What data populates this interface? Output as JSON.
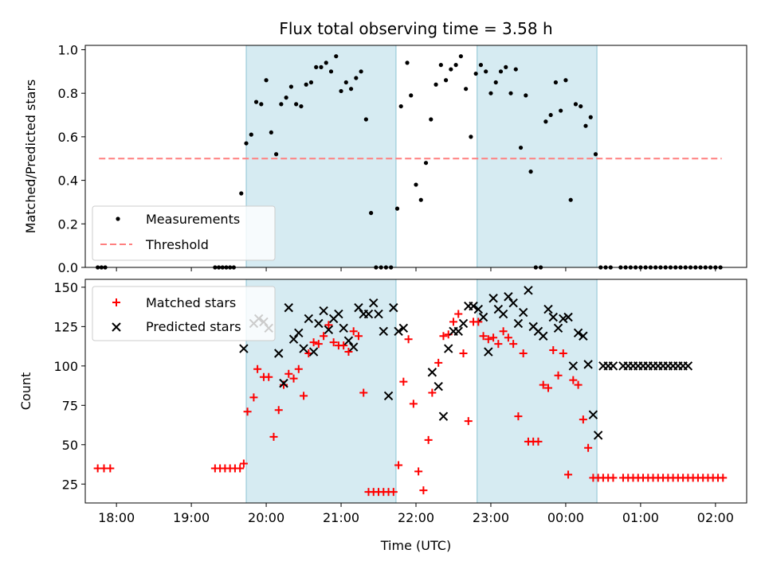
{
  "chart_data": [
    {
      "type": "scatter",
      "title": "Flux total observing time = 3.58 h",
      "ylabel": "Matched/Predicted stars",
      "xlabel": "",
      "xlim": [
        "17:35",
        "02:25"
      ],
      "ylim": [
        0,
        1.02
      ],
      "yticks": [
        "0.0",
        "0.2",
        "0.4",
        "0.6",
        "0.8",
        "1.0"
      ],
      "ytick_values": [
        0,
        0.2,
        0.4,
        0.6,
        0.8,
        1.0
      ],
      "shaded_spans": [
        [
          "19:44",
          "21:44"
        ],
        [
          "22:49",
          "00:25"
        ]
      ],
      "legend": {
        "placement": "lower-left",
        "entries": [
          "Measurements",
          "Threshold"
        ]
      },
      "threshold": {
        "name": "Threshold",
        "y": 0.5,
        "x_range": [
          "17:46",
          "02:05"
        ],
        "color": "#ff7f7f"
      },
      "series": [
        {
          "name": "Measurements",
          "color": "#000000",
          "x": [
            "17:45",
            "17:48",
            "17:51",
            "19:19",
            "19:22",
            "19:25",
            "19:28",
            "19:31",
            "19:34",
            "19:40",
            "19:44",
            "19:48",
            "19:52",
            "19:56",
            "20:00",
            "20:04",
            "20:08",
            "20:12",
            "20:16",
            "20:20",
            "20:24",
            "20:28",
            "20:32",
            "20:36",
            "20:40",
            "20:44",
            "20:48",
            "20:52",
            "20:56",
            "21:00",
            "21:04",
            "21:08",
            "21:12",
            "21:16",
            "21:20",
            "21:24",
            "21:28",
            "21:32",
            "21:36",
            "21:40",
            "21:45",
            "21:48",
            "21:53",
            "21:56",
            "22:00",
            "22:04",
            "22:08",
            "22:12",
            "22:16",
            "22:20",
            "22:24",
            "22:28",
            "22:32",
            "22:36",
            "22:40",
            "22:44",
            "22:48",
            "22:52",
            "22:56",
            "23:00",
            "23:04",
            "23:08",
            "23:12",
            "23:16",
            "23:20",
            "23:24",
            "23:28",
            "23:32",
            "23:36",
            "23:40",
            "23:44",
            "23:48",
            "23:52",
            "23:56",
            "00:00",
            "00:04",
            "00:08",
            "00:12",
            "00:16",
            "00:20",
            "00:24",
            "00:28",
            "00:32",
            "00:36",
            "00:44",
            "00:48",
            "00:52",
            "00:56",
            "01:00",
            "01:04",
            "01:08",
            "01:12",
            "01:16",
            "01:20",
            "01:24",
            "01:28",
            "01:32",
            "01:36",
            "01:40",
            "01:44",
            "01:48",
            "01:52",
            "01:56",
            "02:00",
            "02:04"
          ],
          "y": [
            0,
            0,
            0,
            0,
            0,
            0,
            0,
            0,
            0,
            0.34,
            0.57,
            0.61,
            0.76,
            0.75,
            0.86,
            0.62,
            0.52,
            0.75,
            0.78,
            0.83,
            0.75,
            0.74,
            0.84,
            0.85,
            0.92,
            0.92,
            0.94,
            0.9,
            0.97,
            0.81,
            0.85,
            0.82,
            0.87,
            0.9,
            0.68,
            0.25,
            0,
            0,
            0,
            0,
            0.27,
            0.74,
            0.94,
            0.79,
            0.38,
            0.31,
            0.48,
            0.68,
            0.84,
            0.93,
            0.86,
            0.91,
            0.93,
            0.97,
            0.82,
            0.6,
            0.89,
            0.93,
            0.9,
            0.8,
            0.85,
            0.9,
            0.92,
            0.8,
            0.91,
            0.55,
            0.79,
            0.44,
            0,
            0,
            0.67,
            0.7,
            0.85,
            0.72,
            0.86,
            0.31,
            0.75,
            0.74,
            0.65,
            0.69,
            0.52,
            0,
            0,
            0,
            0,
            0,
            0,
            0,
            0,
            0,
            0,
            0,
            0,
            0,
            0,
            0,
            0,
            0,
            0,
            0,
            0,
            0,
            0,
            0,
            0
          ]
        }
      ]
    },
    {
      "type": "scatter",
      "title": "",
      "xlabel": "Time (UTC)",
      "ylabel": "Count",
      "xlim": [
        "17:35",
        "02:25"
      ],
      "ylim": [
        13,
        155
      ],
      "xticks": [
        "18:00",
        "19:00",
        "20:00",
        "21:00",
        "22:00",
        "23:00",
        "00:00",
        "01:00",
        "02:00"
      ],
      "yticks": [
        "25",
        "50",
        "75",
        "100",
        "125",
        "150"
      ],
      "ytick_values": [
        25,
        50,
        75,
        100,
        125,
        150
      ],
      "shaded_spans": [
        [
          "19:44",
          "21:44"
        ],
        [
          "22:49",
          "00:25"
        ]
      ],
      "legend": {
        "placement": "upper-left",
        "entries": [
          "Matched stars",
          "Predicted stars"
        ]
      },
      "series": [
        {
          "name": "Matched stars",
          "marker": "+",
          "color": "#ff0000",
          "x": [
            "17:45",
            "17:50",
            "17:55",
            "19:19",
            "19:23",
            "19:27",
            "19:31",
            "19:35",
            "19:39",
            "19:42",
            "19:45",
            "19:50",
            "19:53",
            "19:58",
            "20:02",
            "20:06",
            "20:10",
            "20:14",
            "20:18",
            "20:22",
            "20:26",
            "20:30",
            "20:34",
            "20:38",
            "20:42",
            "20:46",
            "20:50",
            "20:54",
            "20:58",
            "21:02",
            "21:06",
            "21:10",
            "21:14",
            "21:18",
            "21:22",
            "21:26",
            "21:30",
            "21:34",
            "21:38",
            "21:42",
            "21:46",
            "21:50",
            "21:54",
            "21:58",
            "22:02",
            "22:06",
            "22:10",
            "22:13",
            "22:18",
            "22:22",
            "22:26",
            "22:30",
            "22:34",
            "22:38",
            "22:42",
            "22:46",
            "22:50",
            "22:54",
            "22:58",
            "23:02",
            "23:06",
            "23:10",
            "23:14",
            "23:18",
            "23:22",
            "23:26",
            "23:30",
            "23:34",
            "23:38",
            "23:42",
            "23:46",
            "23:50",
            "23:54",
            "23:58",
            "00:02",
            "00:06",
            "00:10",
            "00:14",
            "00:18",
            "00:22",
            "00:26",
            "00:30",
            "00:34",
            "00:38",
            "00:46",
            "00:50",
            "00:54",
            "00:58",
            "01:02",
            "01:06",
            "01:10",
            "01:14",
            "01:18",
            "01:22",
            "01:26",
            "01:30",
            "01:34",
            "01:38",
            "01:42",
            "01:46",
            "01:50",
            "01:54",
            "01:58",
            "02:02",
            "02:06"
          ],
          "y": [
            35,
            35,
            35,
            35,
            35,
            35,
            35,
            35,
            35,
            38,
            71,
            80,
            98,
            93,
            93,
            55,
            72,
            88,
            95,
            92,
            98,
            81,
            108,
            115,
            114,
            119,
            126,
            115,
            113,
            113,
            109,
            122,
            119,
            83,
            20,
            20,
            20,
            20,
            20,
            20,
            37,
            90,
            117,
            76,
            33,
            21,
            53,
            83,
            102,
            119,
            120,
            128,
            133,
            108,
            65,
            128,
            128,
            119,
            117,
            118,
            114,
            122,
            118,
            114,
            68,
            108,
            52,
            52,
            52,
            88,
            86,
            110,
            94,
            108,
            31,
            91,
            88,
            66,
            48,
            29,
            29,
            29,
            29,
            29,
            29,
            29,
            29,
            29,
            29,
            29,
            29,
            29,
            29,
            29,
            29,
            29,
            29,
            29,
            29,
            29,
            29,
            29,
            29,
            29,
            29
          ]
        },
        {
          "name": "Predicted stars",
          "marker": "x",
          "color": "#000000",
          "x": [
            "19:42",
            "19:50",
            "19:54",
            "19:58",
            "20:02",
            "20:10",
            "20:14",
            "20:18",
            "20:22",
            "20:26",
            "20:30",
            "20:34",
            "20:38",
            "20:42",
            "20:46",
            "20:50",
            "20:54",
            "20:58",
            "21:02",
            "21:06",
            "21:10",
            "21:14",
            "21:18",
            "21:22",
            "21:26",
            "21:30",
            "21:34",
            "21:38",
            "21:42",
            "21:46",
            "21:50",
            "22:13",
            "22:18",
            "22:22",
            "22:26",
            "22:30",
            "22:34",
            "22:38",
            "22:42",
            "22:46",
            "22:50",
            "22:54",
            "22:58",
            "23:02",
            "23:06",
            "23:10",
            "23:14",
            "23:18",
            "23:22",
            "23:26",
            "23:30",
            "23:34",
            "23:38",
            "23:42",
            "23:46",
            "23:50",
            "23:54",
            "23:58",
            "00:02",
            "00:06",
            "00:10",
            "00:14",
            "00:18",
            "00:22",
            "00:26",
            "00:30",
            "00:34",
            "00:38",
            "00:46",
            "00:50",
            "00:54",
            "00:58",
            "01:02",
            "01:06",
            "01:10",
            "01:14",
            "01:18",
            "01:22",
            "01:26",
            "01:30",
            "01:34",
            "01:38"
          ],
          "y": [
            111,
            127,
            130,
            128,
            124,
            108,
            89,
            137,
            117,
            121,
            111,
            130,
            109,
            127,
            135,
            123,
            130,
            133,
            124,
            116,
            112,
            137,
            133,
            133,
            140,
            133,
            122,
            81,
            137,
            122,
            124,
            96,
            87,
            68,
            111,
            122,
            122,
            127,
            138,
            138,
            136,
            131,
            109,
            143,
            136,
            133,
            144,
            140,
            127,
            134,
            148,
            125,
            122,
            119,
            136,
            131,
            124,
            130,
            131,
            100,
            121,
            119,
            101,
            69,
            56,
            100,
            100,
            100,
            100,
            100,
            100,
            100,
            100,
            100,
            100,
            100,
            100,
            100,
            100,
            100,
            100,
            100
          ]
        }
      ]
    }
  ]
}
